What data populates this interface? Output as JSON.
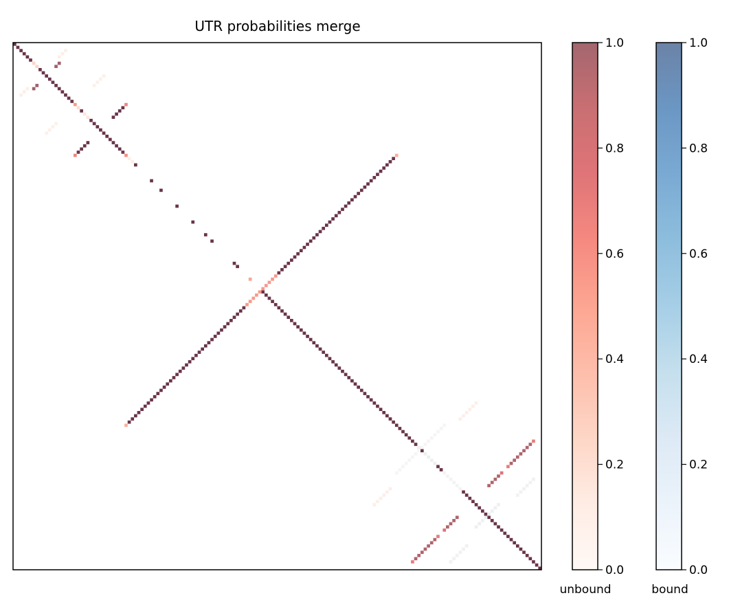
{
  "chart_data": {
    "type": "heatmap",
    "title": "UTR probabilities merge",
    "matrix_size": 166,
    "symmetric": true,
    "axes_ticks_visible": false,
    "grid": false,
    "layer_alpha": 0.6,
    "layer_order": [
      "bound",
      "unbound"
    ],
    "colorbars": [
      {
        "label": "unbound",
        "colormap": "Reds",
        "range": [
          0,
          1
        ],
        "ticks": [
          "0.0",
          "0.2",
          "0.4",
          "0.6",
          "0.8",
          "1.0"
        ],
        "colors": [
          "#fff5f0",
          "#fee0d2",
          "#fcbba1",
          "#fc9272",
          "#fb6a4a",
          "#ef3b2c",
          "#cb181d",
          "#a50f15",
          "#67000d"
        ]
      },
      {
        "label": "bound",
        "colormap": "Blues",
        "range": [
          0,
          1
        ],
        "ticks": [
          "0.0",
          "0.2",
          "0.4",
          "0.6",
          "0.8",
          "1.0"
        ],
        "colors": [
          "#f7fbff",
          "#deebf7",
          "#c6dbef",
          "#9ecae1",
          "#6baed6",
          "#4292c6",
          "#2171b5",
          "#08519c",
          "#08306b"
        ]
      }
    ],
    "segments": [
      {
        "row": 0,
        "col": 0,
        "length": 6,
        "direction": "main",
        "unbound": 1,
        "bound": 1
      },
      {
        "row": 6,
        "col": 6,
        "length": 2,
        "direction": "main",
        "unbound": 0.25,
        "bound": 0
      },
      {
        "row": 8,
        "col": 8,
        "length": 11,
        "direction": "main",
        "unbound": 1,
        "bound": 1
      },
      {
        "row": 19,
        "col": 19,
        "length": 1,
        "direction": "main",
        "unbound": 0.55,
        "bound": 0
      },
      {
        "row": 20,
        "col": 20,
        "length": 1,
        "direction": "main",
        "unbound": 0.2,
        "bound": 0
      },
      {
        "row": 21,
        "col": 21,
        "length": 1,
        "direction": "main",
        "unbound": 1,
        "bound": 1
      },
      {
        "row": 22,
        "col": 22,
        "length": 2,
        "direction": "main",
        "unbound": 0.15,
        "bound": 0
      },
      {
        "row": 24,
        "col": 24,
        "length": 11,
        "direction": "main",
        "unbound": 1,
        "bound": 1
      },
      {
        "row": 35,
        "col": 35,
        "length": 1,
        "direction": "main",
        "unbound": 0.6,
        "bound": 0
      },
      {
        "row": 36,
        "col": 36,
        "length": 2,
        "direction": "main",
        "unbound": 0.1,
        "bound": 0
      },
      {
        "row": 38,
        "col": 38,
        "length": 1,
        "direction": "main",
        "unbound": 1,
        "bound": 1
      },
      {
        "row": 43,
        "col": 43,
        "length": 1,
        "direction": "main",
        "unbound": 1,
        "bound": 1
      },
      {
        "row": 46,
        "col": 46,
        "length": 1,
        "direction": "main",
        "unbound": 1,
        "bound": 1
      },
      {
        "row": 51,
        "col": 51,
        "length": 1,
        "direction": "main",
        "unbound": 1,
        "bound": 1
      },
      {
        "row": 56,
        "col": 56,
        "length": 1,
        "direction": "main",
        "unbound": 1,
        "bound": 1
      },
      {
        "row": 60,
        "col": 60,
        "length": 1,
        "direction": "main",
        "unbound": 1,
        "bound": 1
      },
      {
        "row": 62,
        "col": 62,
        "length": 1,
        "direction": "main",
        "unbound": 1,
        "bound": 1
      },
      {
        "row": 69,
        "col": 69,
        "length": 2,
        "direction": "main",
        "unbound": 1,
        "bound": 1
      },
      {
        "row": 74,
        "col": 74,
        "length": 1,
        "direction": "main",
        "unbound": 0.5,
        "bound": 0
      },
      {
        "row": 78,
        "col": 78,
        "length": 49,
        "direction": "main",
        "unbound": 1,
        "bound": 1
      },
      {
        "row": 127,
        "col": 127,
        "length": 1,
        "direction": "main",
        "unbound": 0,
        "bound": 0.3
      },
      {
        "row": 128,
        "col": 128,
        "length": 1,
        "direction": "main",
        "unbound": 1,
        "bound": 1
      },
      {
        "row": 129,
        "col": 129,
        "length": 4,
        "direction": "main",
        "unbound": 0,
        "bound": 0.3
      },
      {
        "row": 133,
        "col": 133,
        "length": 2,
        "direction": "main",
        "unbound": 1,
        "bound": 1
      },
      {
        "row": 135,
        "col": 135,
        "length": 6,
        "direction": "main",
        "unbound": 0,
        "bound": 0.2
      },
      {
        "row": 141,
        "col": 141,
        "length": 25,
        "direction": "main",
        "unbound": 1,
        "bound": 1
      },
      {
        "row": 6,
        "col": 14,
        "length": 2,
        "direction": "anti",
        "unbound": 0.95,
        "bound": 0.3
      },
      {
        "row": 19,
        "col": 35,
        "length": 1,
        "direction": "anti",
        "unbound": 0.65,
        "bound": 0
      },
      {
        "row": 20,
        "col": 34,
        "length": 4,
        "direction": "anti",
        "unbound": 1,
        "bound": 1
      },
      {
        "row": 35,
        "col": 120,
        "length": 1,
        "direction": "anti",
        "unbound": 0.45,
        "bound": 0
      },
      {
        "row": 36,
        "col": 119,
        "length": 37,
        "direction": "anti",
        "unbound": 1,
        "bound": 1
      },
      {
        "row": 73,
        "col": 82,
        "length": 5,
        "direction": "anti",
        "unbound": 0.55,
        "bound": 0
      },
      {
        "row": 125,
        "col": 163,
        "length": 1,
        "direction": "anti",
        "unbound": 0.7,
        "bound": 0
      },
      {
        "row": 126,
        "col": 162,
        "length": 7,
        "direction": "anti",
        "unbound": 0.9,
        "bound": 0.3
      },
      {
        "row": 133,
        "col": 155,
        "length": 1,
        "direction": "anti",
        "unbound": 0.7,
        "bound": 0
      },
      {
        "row": 135,
        "col": 153,
        "length": 1,
        "direction": "anti",
        "unbound": 0.75,
        "bound": 0
      },
      {
        "row": 136,
        "col": 152,
        "length": 4,
        "direction": "anti",
        "unbound": 0.9,
        "bound": 0.3
      },
      {
        "row": 145,
        "col": 152,
        "length": 7,
        "direction": "anti",
        "unbound": 0,
        "bound": 0.3
      },
      {
        "row": 137,
        "col": 163,
        "length": 6,
        "direction": "anti",
        "unbound": 0,
        "bound": 0.25
      },
      {
        "row": 120,
        "col": 135,
        "length": 8,
        "direction": "anti",
        "unbound": 0,
        "bound": 0.12
      },
      {
        "row": 113,
        "col": 145,
        "length": 6,
        "direction": "anti",
        "unbound": 0.1,
        "bound": 0
      },
      {
        "row": 2,
        "col": 16,
        "length": 3,
        "direction": "anti",
        "unbound": 0.1,
        "bound": 0
      },
      {
        "row": 10,
        "col": 28,
        "length": 4,
        "direction": "anti",
        "unbound": 0.08,
        "bound": 0
      }
    ]
  }
}
